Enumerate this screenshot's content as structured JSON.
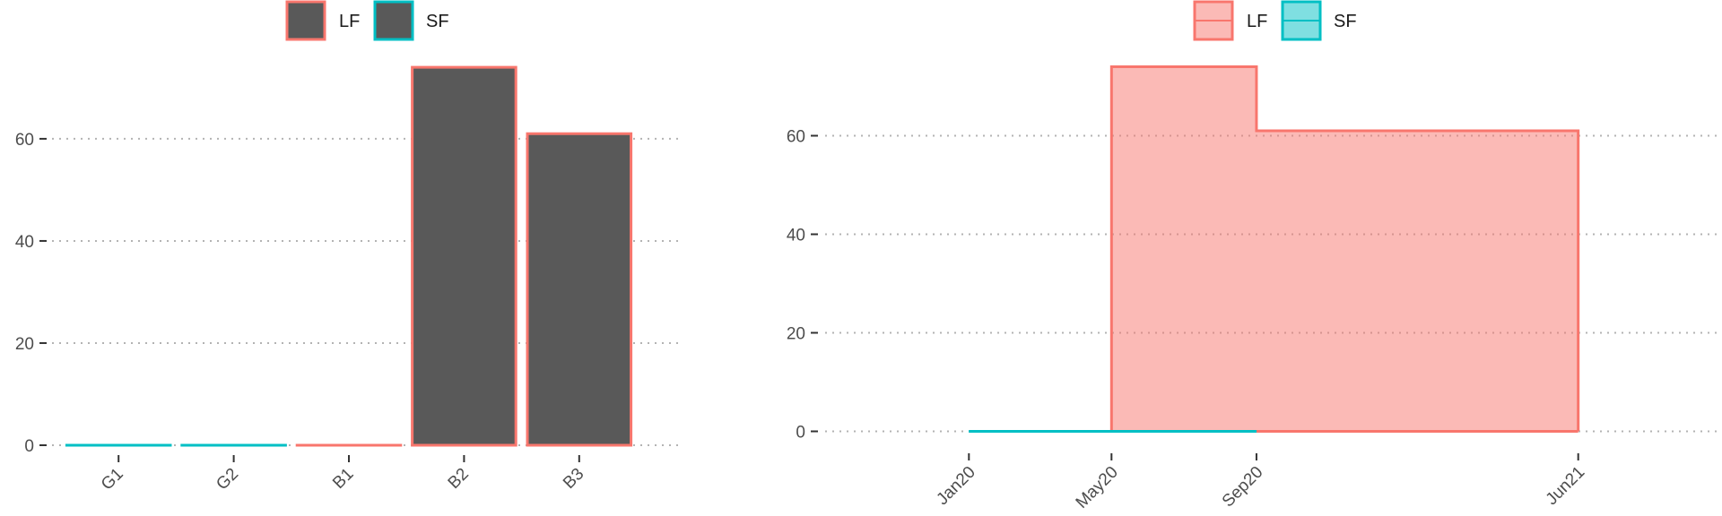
{
  "colors": {
    "LF": "#f8766d",
    "SF": "#00bfc4",
    "LF_fill": "#f8766d",
    "SF_fill": "#00bfc4",
    "bar_fill": "#595959",
    "grid": "#b3b3b3",
    "text": "#4d4d4d"
  },
  "chart_data": [
    {
      "type": "bar",
      "title": "",
      "xlabel": "",
      "ylabel": "",
      "categories": [
        "G1",
        "G2",
        "B1",
        "B2",
        "B3"
      ],
      "series": [
        {
          "name": "LF",
          "values": [
            0,
            0,
            0,
            74,
            61
          ]
        },
        {
          "name": "SF",
          "values": [
            0,
            0,
            0,
            0,
            0
          ]
        }
      ],
      "group_series": [
        "SF",
        "SF",
        "LF",
        "LF",
        "LF"
      ],
      "yticks": [
        0,
        20,
        40,
        60
      ],
      "ylim": [
        0,
        77
      ],
      "grid": "horizontal dotted",
      "legend": {
        "position": "top",
        "entries": [
          "LF",
          "SF"
        ]
      }
    },
    {
      "type": "area",
      "title": "",
      "xlabel": "",
      "ylabel": "",
      "step": "post",
      "x_tick_labels": [
        "Jan20",
        "May20",
        "Sep20",
        "Jun21"
      ],
      "x_tick_dates": [
        "2020-01-01",
        "2020-05-01",
        "2020-09-01",
        "2021-06-01"
      ],
      "xlim": [
        "2019-09-01",
        "2021-10-01"
      ],
      "series": [
        {
          "name": "LF",
          "points": [
            {
              "x": "2020-05-01",
              "y": 74
            },
            {
              "x": "2020-09-01",
              "y": 61
            },
            {
              "x": "2021-06-01",
              "y": 61
            }
          ]
        },
        {
          "name": "SF",
          "points": [
            {
              "x": "2020-01-01",
              "y": 0
            },
            {
              "x": "2020-09-01",
              "y": 0
            }
          ]
        }
      ],
      "yticks": [
        0,
        20,
        40,
        60
      ],
      "ylim": [
        -3,
        77
      ],
      "grid": "horizontal dotted",
      "legend": {
        "position": "top",
        "entries": [
          "LF",
          "SF"
        ]
      }
    }
  ]
}
